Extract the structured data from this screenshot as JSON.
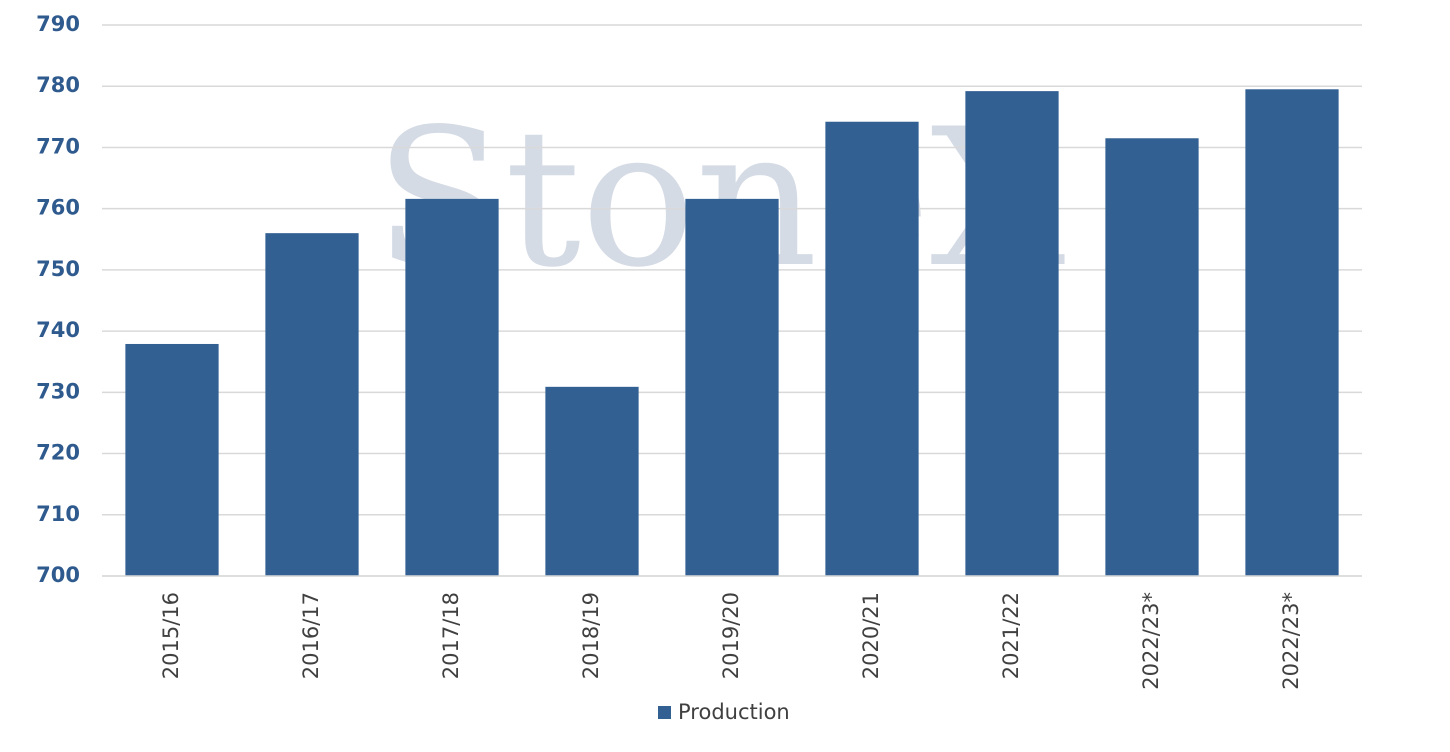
{
  "chart_data": {
    "type": "bar",
    "watermark": "StoneX",
    "categories": [
      "2015/16",
      "2016/17",
      "2017/18",
      "2018/19",
      "2019/20",
      "2020/21",
      "2021/22",
      "2022/23*",
      "2022/23*"
    ],
    "series": [
      {
        "name": "Production",
        "color": "#336093",
        "values": [
          737.9,
          756,
          761.6,
          730.9,
          761.6,
          774.2,
          779.2,
          771.5,
          779.5
        ]
      }
    ],
    "ylim": [
      700,
      790
    ],
    "yticks": [
      700,
      710,
      720,
      730,
      740,
      750,
      760,
      770,
      780,
      790
    ],
    "grid": true,
    "legend": "bottom"
  }
}
